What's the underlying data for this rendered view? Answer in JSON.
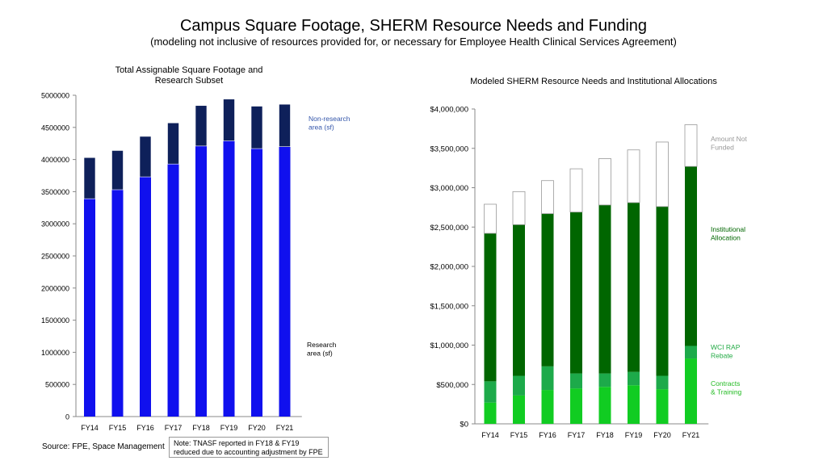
{
  "page": {
    "title": "Campus Square Footage, SHERM Resource Needs and Funding",
    "subtitle": "(modeling not inclusive of resources provided for, or necessary for Employee Health Clinical Services Agreement)",
    "source": "Source: FPE, Space Management",
    "note": "Note: TNASF reported in FY18 & FY19 reduced due to accounting adjustment by FPE"
  },
  "chart_data": [
    {
      "type": "bar",
      "stacked": true,
      "title": "Total Assignable Square Footage and Research Subset",
      "categories": [
        "FY14",
        "FY15",
        "FY16",
        "FY17",
        "FY18",
        "FY19",
        "FY20",
        "FY21"
      ],
      "ylim": [
        0,
        5000000
      ],
      "yticks": [
        "0",
        "500000",
        "1000000",
        "1500000",
        "2000000",
        "2500000",
        "3000000",
        "3500000",
        "4000000",
        "4500000",
        "5000000"
      ],
      "grid": false,
      "series": [
        {
          "name": "Non-research area (sf)",
          "color": "#1010ee",
          "label_color": "#3355aa",
          "values": [
            3390000,
            3530000,
            3730000,
            3930000,
            4210000,
            4290000,
            4170000,
            4200000
          ]
        },
        {
          "name": "Research area (sf)",
          "color": "#0e205a",
          "label_color": "#000000",
          "values": [
            640000,
            610000,
            630000,
            640000,
            630000,
            650000,
            660000,
            660000
          ]
        }
      ]
    },
    {
      "type": "bar",
      "stacked": true,
      "title": "Modeled SHERM Resource Needs and Institutional Allocations",
      "categories": [
        "FY14",
        "FY15",
        "FY16",
        "FY17",
        "FY18",
        "FY19",
        "FY20",
        "FY21"
      ],
      "ylim": [
        0,
        4000000
      ],
      "yticks": [
        "$0",
        "$500,000",
        "$1,000,000",
        "$1,500,000",
        "$2,000,000",
        "$2,500,000",
        "$3,000,000",
        "$3,500,000",
        "$4,000,000"
      ],
      "grid": false,
      "series": [
        {
          "name": "Contracts & Training",
          "color": "#11cc22",
          "label_color": "#22bb22",
          "values": [
            270000,
            360000,
            430000,
            450000,
            470000,
            490000,
            440000,
            830000
          ]
        },
        {
          "name": "WCI RAP Rebate",
          "color": "#1daa4a",
          "label_color": "#22aa44",
          "values": [
            270000,
            250000,
            300000,
            190000,
            170000,
            170000,
            170000,
            160000
          ]
        },
        {
          "name": "Institutional Allocation",
          "color": "#006600",
          "label_color": "#006600",
          "values": [
            1880000,
            1920000,
            1940000,
            2050000,
            2140000,
            2150000,
            2150000,
            2280000
          ]
        },
        {
          "name": "Amount Not Funded",
          "color": "#ffffff",
          "label_color": "#999999",
          "values": [
            370000,
            420000,
            420000,
            550000,
            590000,
            670000,
            820000,
            530000
          ]
        }
      ]
    }
  ]
}
